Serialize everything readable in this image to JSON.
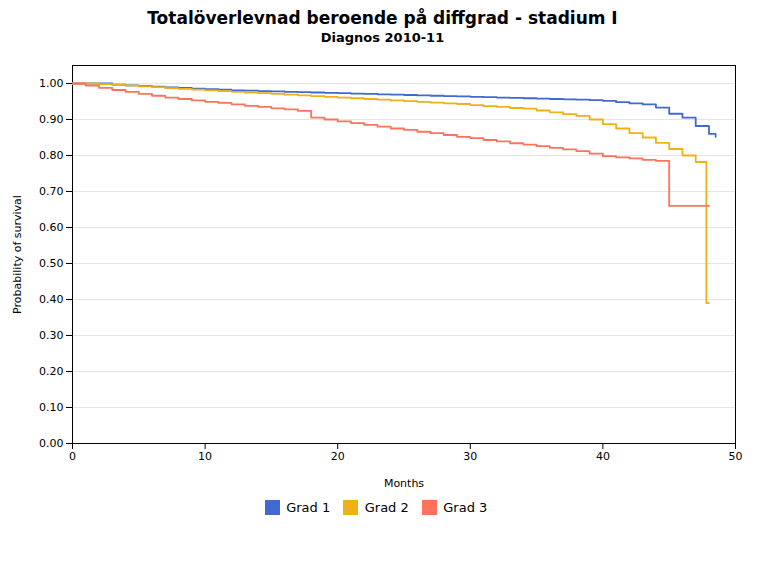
{
  "chart_data": {
    "type": "step",
    "title": "Totalöverlevnad beroende på diffgrad - stadium I",
    "subtitle": "Diagnos 2010-11",
    "x_label": "Months",
    "y_label": "Probability of survival",
    "xlim": [
      0,
      50
    ],
    "ylim": [
      0.0,
      1.05
    ],
    "xticks": [
      0,
      10,
      20,
      30,
      40,
      50
    ],
    "yticks": [
      {
        "value": 0.0,
        "label": "0.00"
      },
      {
        "value": 0.1,
        "label": "0.10"
      },
      {
        "value": 0.2,
        "label": "0.20"
      },
      {
        "value": 0.3,
        "label": "0.30"
      },
      {
        "value": 0.4,
        "label": "0.40"
      },
      {
        "value": 0.5,
        "label": "0.50"
      },
      {
        "value": 0.6,
        "label": "0.60"
      },
      {
        "value": 0.7,
        "label": "0.70"
      },
      {
        "value": 0.8,
        "label": "0.80"
      },
      {
        "value": 0.9,
        "label": "0.90"
      },
      {
        "value": 1.0,
        "label": "1.00"
      }
    ],
    "grid": true,
    "legend": "bottom",
    "series": [
      {
        "name": "Grad 1",
        "x": [
          0,
          1,
          2,
          3,
          4,
          5,
          6,
          7,
          8,
          9,
          10,
          11,
          12,
          13,
          14,
          15,
          16,
          17,
          18,
          19,
          20,
          21,
          22,
          23,
          24,
          25,
          26,
          27,
          28,
          29,
          30,
          31,
          32,
          33,
          34,
          35,
          36,
          37,
          38,
          39,
          40,
          41,
          42,
          43,
          43.5,
          44,
          44.5,
          45,
          45.3,
          46,
          46.5,
          47,
          47.5,
          48,
          48.5
        ],
        "values": [
          1.0,
          1.0,
          1.0,
          0.997,
          0.995,
          0.993,
          0.991,
          0.989,
          0.988,
          0.986,
          0.984,
          0.983,
          0.981,
          0.98,
          0.979,
          0.978,
          0.977,
          0.976,
          0.975,
          0.974,
          0.973,
          0.972,
          0.971,
          0.97,
          0.969,
          0.968,
          0.967,
          0.966,
          0.965,
          0.964,
          0.963,
          0.962,
          0.961,
          0.96,
          0.959,
          0.958,
          0.957,
          0.956,
          0.955,
          0.954,
          0.952,
          0.948,
          0.945,
          0.942,
          0.942,
          0.933,
          0.933,
          0.916,
          0.916,
          0.905,
          0.905,
          0.882,
          0.882,
          0.86,
          0.852
        ]
      },
      {
        "name": "Grad 2",
        "x": [
          0,
          1,
          2,
          3,
          4,
          5,
          6,
          7,
          8,
          9,
          10,
          11,
          12,
          13,
          14,
          15,
          16,
          17,
          18,
          19,
          20,
          21,
          22,
          23,
          24,
          25,
          26,
          27,
          28,
          29,
          30,
          31,
          32,
          33,
          34,
          35,
          36,
          37,
          38,
          39,
          40,
          41,
          42,
          43,
          44,
          45,
          46,
          46.5,
          47,
          47.2,
          47.8,
          48
        ],
        "values": [
          1.0,
          1.0,
          0.998,
          0.996,
          0.994,
          0.992,
          0.99,
          0.987,
          0.985,
          0.983,
          0.981,
          0.979,
          0.977,
          0.975,
          0.973,
          0.971,
          0.969,
          0.967,
          0.965,
          0.963,
          0.961,
          0.959,
          0.957,
          0.955,
          0.953,
          0.951,
          0.949,
          0.947,
          0.945,
          0.943,
          0.94,
          0.937,
          0.935,
          0.932,
          0.93,
          0.925,
          0.92,
          0.915,
          0.91,
          0.9,
          0.887,
          0.875,
          0.862,
          0.85,
          0.835,
          0.818,
          0.8,
          0.8,
          0.782,
          0.782,
          0.39,
          0.39
        ]
      },
      {
        "name": "Grad 3",
        "x": [
          0,
          1,
          2,
          3,
          4,
          5,
          6,
          7,
          8,
          9,
          10,
          11,
          12,
          13,
          14,
          15,
          16,
          17,
          18,
          19,
          20,
          21,
          22,
          23,
          24,
          25,
          26,
          27,
          28,
          29,
          30,
          31,
          32,
          33,
          34,
          35,
          36,
          37,
          38,
          39,
          40,
          41,
          42,
          43,
          44,
          44.3,
          45,
          45.5,
          48
        ],
        "values": [
          1.0,
          0.994,
          0.988,
          0.982,
          0.977,
          0.971,
          0.966,
          0.961,
          0.957,
          0.953,
          0.949,
          0.946,
          0.942,
          0.938,
          0.935,
          0.931,
          0.928,
          0.924,
          0.905,
          0.9,
          0.895,
          0.89,
          0.885,
          0.88,
          0.875,
          0.871,
          0.866,
          0.862,
          0.857,
          0.852,
          0.848,
          0.843,
          0.839,
          0.834,
          0.83,
          0.826,
          0.821,
          0.817,
          0.812,
          0.805,
          0.798,
          0.795,
          0.792,
          0.788,
          0.785,
          0.785,
          0.66,
          0.66,
          0.66
        ]
      }
    ]
  }
}
